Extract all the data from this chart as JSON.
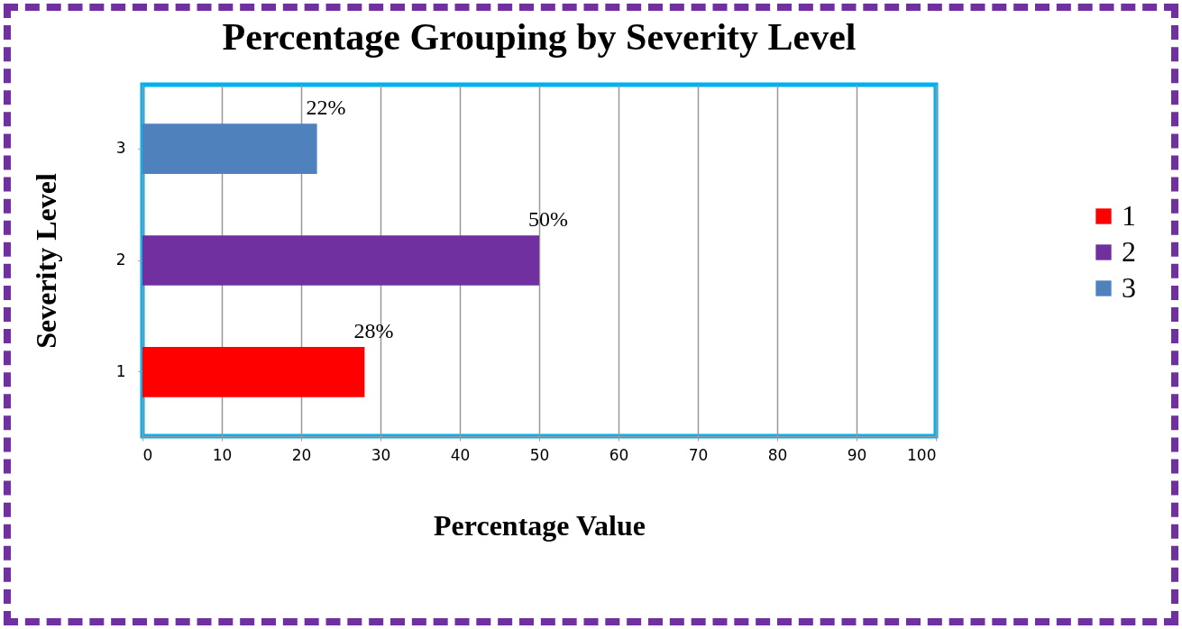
{
  "chart_data": {
    "type": "bar",
    "orientation": "horizontal",
    "title": "Percentage Grouping by Severity Level",
    "xlabel": "Percentage Value",
    "ylabel": "Severity Level",
    "categories": [
      "3",
      "2",
      "1"
    ],
    "series": [
      {
        "name": "1",
        "color": "#ff0000",
        "values": [
          null,
          null,
          28
        ],
        "value_labels": [
          null,
          null,
          "28%"
        ]
      },
      {
        "name": "2",
        "color": "#7030a0",
        "values": [
          null,
          50,
          null
        ],
        "value_labels": [
          null,
          "50%",
          null
        ]
      },
      {
        "name": "3",
        "color": "#4f81bd",
        "values": [
          22,
          null,
          null
        ],
        "value_labels": [
          "22%",
          null,
          null
        ]
      }
    ],
    "xlim": [
      0,
      100
    ],
    "xticks": [
      0,
      10,
      20,
      30,
      40,
      50,
      60,
      70,
      80,
      90,
      100
    ],
    "grid": "x",
    "legend": "right"
  }
}
